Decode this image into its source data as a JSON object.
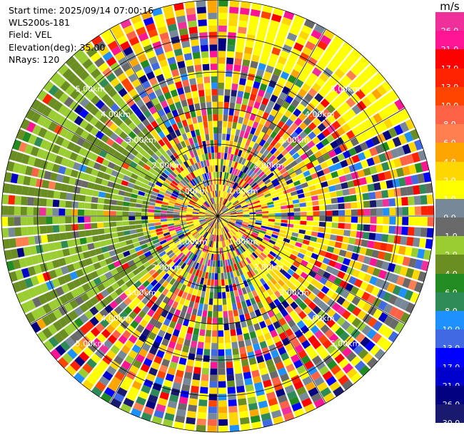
{
  "info": {
    "start_time": "Start time: 2025/09/14 07:00:16",
    "instrument": "WLS200s-181",
    "field": "Field: VEL",
    "elevation": "Elevation(deg): 35.00",
    "nrays": "NRays: 120"
  },
  "colorbar": {
    "units": "m/s",
    "bins": [
      {
        "label": "26.0",
        "color": "#f0309a"
      },
      {
        "label": "21.0",
        "color": "#ff1493"
      },
      {
        "label": "17.0",
        "color": "#ff0000"
      },
      {
        "label": "13.0",
        "color": "#ff2200"
      },
      {
        "label": "10.0",
        "color": "#ff4500"
      },
      {
        "label": "8.0",
        "color": "#ff6347"
      },
      {
        "label": "6.0",
        "color": "#ff7f50"
      },
      {
        "label": "4.0",
        "color": "#ffa500"
      },
      {
        "label": "2.0",
        "color": "#ffd700"
      },
      {
        "label": "1.0",
        "color": "#ffff00"
      },
      {
        "label": "0.0",
        "color": "#778899"
      },
      {
        "label": "-1.0",
        "color": "#696969"
      },
      {
        "label": "-2.0",
        "color": "#9acd32"
      },
      {
        "label": "-4.0",
        "color": "#6b8e23"
      },
      {
        "label": "-6.0",
        "color": "#228b22"
      },
      {
        "label": "-8.0",
        "color": "#2e8b57"
      },
      {
        "label": "-10.0",
        "color": "#1e90ff"
      },
      {
        "label": "-13.0",
        "color": "#4169e1"
      },
      {
        "label": "-17.0",
        "color": "#0000ff"
      },
      {
        "label": "-21.0",
        "color": "#0000cd"
      },
      {
        "label": "-26.0",
        "color": "#000080"
      },
      {
        "label": "-30.0",
        "color": "#191970"
      }
    ]
  },
  "chart_data": {
    "type": "heatmap",
    "projection": "ppi-polar",
    "field": "VEL",
    "units": "m/s",
    "n_rays": 120,
    "elevation_deg": 35.0,
    "max_range_km": 6.0,
    "range_rings_km": [
      1.0,
      2.0,
      3.0,
      4.0,
      5.0,
      6.0
    ],
    "ring_labels": [
      "1.00km",
      "2.00km",
      "3.00km",
      "4.00km",
      "5.00km",
      "6.00km"
    ],
    "spokes_deg": [
      0,
      30,
      60,
      90,
      120,
      150,
      180,
      210,
      240,
      270,
      300,
      330
    ],
    "color_levels": [
      26.0,
      21.0,
      17.0,
      13.0,
      10.0,
      8.0,
      6.0,
      4.0,
      2.0,
      1.0,
      0.0,
      -1.0,
      -2.0,
      -4.0,
      -6.0,
      -8.0,
      -10.0,
      -13.0,
      -17.0,
      -21.0,
      -26.0,
      -30.0
    ],
    "dominant_regions": [
      {
        "sector": "west",
        "values_range": [
          -4.0,
          -2.0
        ]
      },
      {
        "sector": "north-northeast outer ring",
        "values_range": [
          1.0,
          2.0
        ]
      },
      {
        "sector": "center-east",
        "values_range": [
          1.0,
          4.0
        ]
      }
    ]
  }
}
